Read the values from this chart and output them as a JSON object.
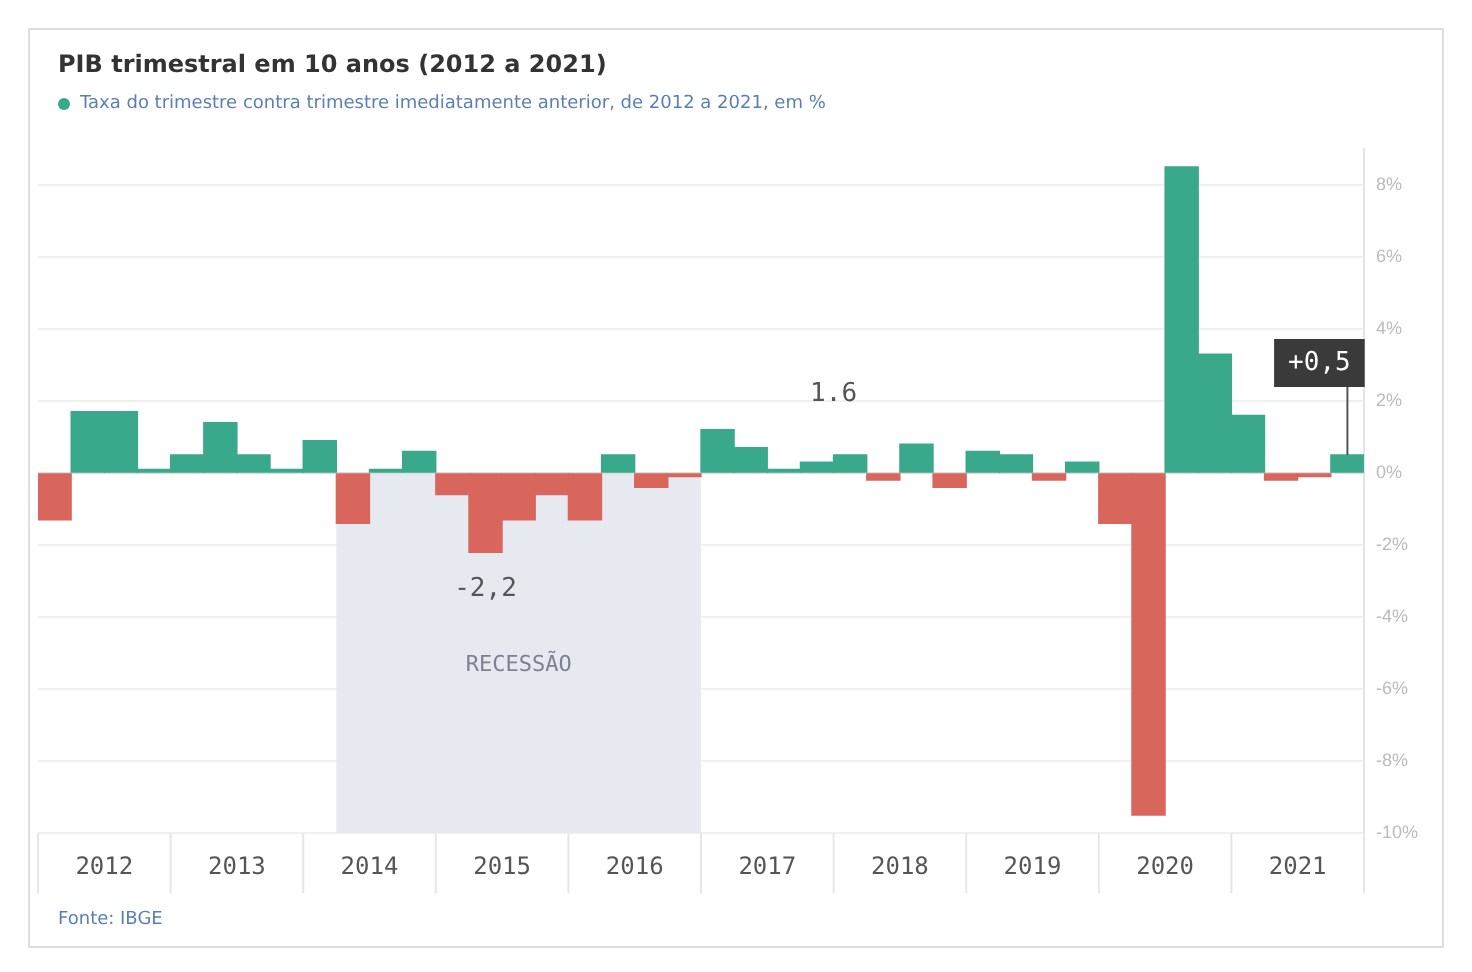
{
  "chart_data": {
    "type": "bar",
    "title": "PIB trimestral em 10 anos (2012 a 2021)",
    "x": [
      2012,
      2012.25,
      2012.5,
      2012.75,
      2013,
      2013.25,
      2013.5,
      2013.75,
      2014,
      2014.25,
      2014.5,
      2014.75,
      2015,
      2015.25,
      2015.5,
      2015.75,
      2016,
      2016.25,
      2016.5,
      2016.75,
      2017,
      2017.25,
      2017.5,
      2017.75,
      2018,
      2018.25,
      2018.5,
      2018.75,
      2019,
      2019.25,
      2019.5,
      2019.75,
      2020,
      2020.25,
      2020.5,
      2020.75,
      2021,
      2021.25,
      2021.5,
      2021.75
    ],
    "series": [
      {
        "name": "Taxa do trimestre contra trimestre imediatamente anterior, de 2012 a 2021, em %",
        "color": "#3aa98b",
        "colors": [
          "#d8665c",
          "#3aa98b",
          "#3aa98b",
          "#3aa98b",
          "#3aa98b",
          "#3aa98b",
          "#3aa98b",
          "#3aa98b",
          "#3aa98b",
          "#d8665c",
          "#3aa98b",
          "#3aa98b",
          "#d8665c",
          "#d8665c",
          "#d8665c",
          "#d8665c",
          "#d8665c",
          "#3aa98b",
          "#d8665c",
          "#d8665c",
          "#3aa98b",
          "#3aa98b",
          "#3aa98b",
          "#3aa98b",
          "#3aa98b",
          "#d8665c",
          "#3aa98b",
          "#d8665c",
          "#3aa98b",
          "#3aa98b",
          "#d8665c",
          "#3aa98b",
          "#d8665c",
          "#d8665c",
          "#3aa98b",
          "#3aa98b",
          "#3aa98b",
          "#d8665c",
          "#d8665c",
          "#3aa98b"
        ],
        "values": [
          -1.3,
          1.7,
          1.7,
          0.1,
          0.5,
          1.4,
          0.5,
          0.1,
          0.9,
          -1.4,
          0.1,
          0.6,
          -0.6,
          -2.2,
          -1.3,
          -0.6,
          -1.3,
          0.5,
          -0.4,
          -0.1,
          1.2,
          0.7,
          0.1,
          0.3,
          0.5,
          -0.2,
          0.8,
          -0.4,
          0.6,
          0.5,
          -0.2,
          0.3,
          -1.4,
          -9.5,
          8.5,
          3.3,
          1.6,
          -0.2,
          -0.1,
          0.5
        ]
      }
    ],
    "xlim": [
      2011.875,
      2021.875
    ],
    "xticks": [
      {
        "value": 2012.375,
        "label": "2012"
      },
      {
        "value": 2013.375,
        "label": "2013"
      },
      {
        "value": 2014.375,
        "label": "2014"
      },
      {
        "value": 2015.375,
        "label": "2015"
      },
      {
        "value": 2016.375,
        "label": "2016"
      },
      {
        "value": 2017.375,
        "label": "2017"
      },
      {
        "value": 2018.375,
        "label": "2018"
      },
      {
        "value": 2019.375,
        "label": "2019"
      },
      {
        "value": 2020.375,
        "label": "2020"
      },
      {
        "value": 2021.375,
        "label": "2021"
      }
    ],
    "ylim": [
      -10,
      9
    ],
    "yticks": [
      {
        "value": 8,
        "label": "8%"
      },
      {
        "value": 6,
        "label": "6%"
      },
      {
        "value": 4,
        "label": "4%"
      },
      {
        "value": 2,
        "label": "2%"
      },
      {
        "value": 0,
        "label": "0%"
      },
      {
        "value": -2,
        "label": "-2%"
      },
      {
        "value": -4,
        "label": "-4%"
      },
      {
        "value": -6,
        "label": "-6%"
      },
      {
        "value": -8,
        "label": "-8%"
      },
      {
        "value": -10,
        "label": "-10%"
      }
    ],
    "grid": "y",
    "legend": "top left",
    "bands": [
      {
        "axis": "x",
        "from": 2014.125,
        "to": 2016.875,
        "label": "RECESSÃO",
        "color": "#e6e9f0"
      }
    ],
    "annotations": [
      {
        "text": "-2,2",
        "x": 2015.25,
        "y": -2.2
      },
      "1.6",
      {
        "text": "+0,5",
        "x": 2021.75,
        "y": 0.5
      },
      "Fonte: IBGE"
    ]
  }
}
